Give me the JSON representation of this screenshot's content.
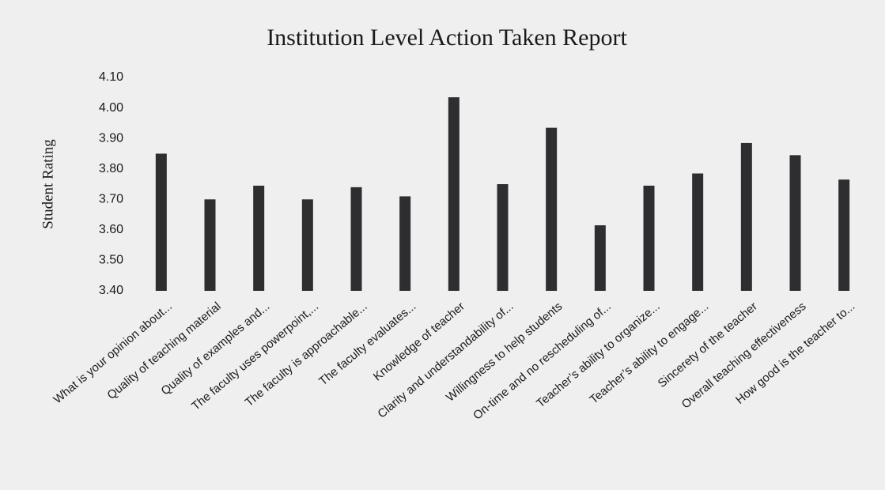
{
  "chart_data": {
    "type": "bar",
    "title": "Institution Level Action Taken Report",
    "y_label": "Student Rating",
    "categories": [
      "What is your opinion about...",
      "Quality of teaching material",
      "Quality of examples and...",
      "The faculty uses powerpoint,...",
      "The faculty is approachable...",
      "The faculty evaluates...",
      "Knowledge of teacher",
      "Clarity and understandability of...",
      "Willingness to help students",
      "On-time and no rescheduling of...",
      "Teacher’s ability to organize...",
      "Teacher’s ability to engage...",
      "Sincerety of the teacher",
      "Overall teaching effectiveness",
      "How good is the teacher to..."
    ],
    "values": [
      3.85,
      3.7,
      3.745,
      3.7,
      3.74,
      3.71,
      4.035,
      3.75,
      3.935,
      3.615,
      3.745,
      3.785,
      3.885,
      3.845,
      3.765
    ],
    "color": "#2e2e30",
    "ylim": [
      3.4,
      4.1
    ],
    "yticks": [
      {
        "value": 3.4,
        "label": "3.40"
      },
      {
        "value": 3.5,
        "label": "3.50"
      },
      {
        "value": 3.6,
        "label": "3.60"
      },
      {
        "value": 3.7,
        "label": "3.70"
      },
      {
        "value": 3.8,
        "label": "3.80"
      },
      {
        "value": 3.9,
        "label": "3.90"
      },
      {
        "value": 4.0,
        "label": "4.00"
      },
      {
        "value": 4.1,
        "label": "4.10"
      }
    ],
    "grid": false
  }
}
